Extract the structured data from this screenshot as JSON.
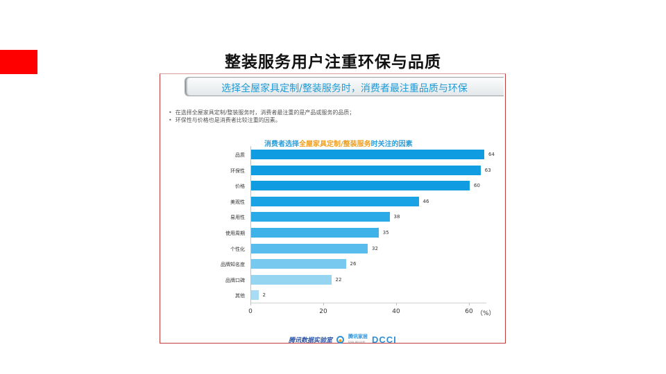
{
  "slide": {
    "title": "整装服务用户注重环保与品质",
    "accent_color": "#ff0000"
  },
  "figure": {
    "banner": "选择全屋家具定制/整装服务时，消费者最注重品质与环保",
    "bullets": [
      "在选择全屋家具定制/整装服务时，消费者最注重的是产品或服务的品质；",
      "环保性与价格也是消费者比较注重的因素。"
    ],
    "chart_title_parts": {
      "pre": "消费者选择",
      "highlight": "全屋家具定制/整装服务",
      "post": "时关注的因素"
    },
    "logos": {
      "logo1": "腾讯数据实验室",
      "logo2_main": "腾讯家居",
      "logo2_sub": "jiaju.qq.com",
      "logo3": "DCCI"
    }
  },
  "chart_data": {
    "type": "bar",
    "orientation": "horizontal",
    "title": "消费者选择全屋家具定制/整装服务时关注的因素",
    "categories": [
      "品质",
      "环保性",
      "价格",
      "美观性",
      "易用性",
      "使用周期",
      "个性化",
      "品牌知名度",
      "品牌口碑",
      "其他"
    ],
    "values": [
      64,
      63,
      60,
      46,
      38,
      35,
      32,
      26,
      22,
      2
    ],
    "colors": [
      "#0f9ce0",
      "#0f9ce0",
      "#0f9ce0",
      "#1aa3e4",
      "#2aaae6",
      "#3cb2e9",
      "#58bdec",
      "#78c9ef",
      "#95d5f2",
      "#a9dcf3"
    ],
    "xlabel": "",
    "unit_label": "（%）",
    "xticks": [
      0,
      20,
      40,
      60
    ],
    "xlim": [
      0,
      65
    ],
    "grid": false,
    "legend": null
  }
}
